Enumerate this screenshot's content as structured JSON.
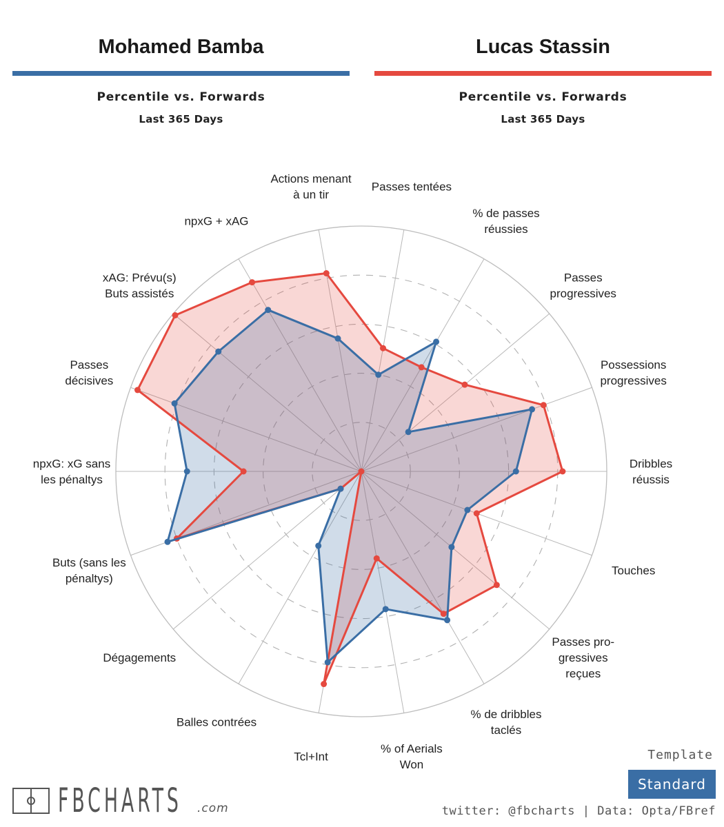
{
  "players": [
    {
      "name": "Mohamed Bamba",
      "color": "#3a6ea5",
      "subtitle": "Percentile vs. Forwards",
      "period": "Last 365 Days"
    },
    {
      "name": "Lucas Stassin",
      "color": "#e5493f",
      "subtitle": "Percentile vs. Forwards",
      "period": "Last 365 Days"
    }
  ],
  "chart_data": {
    "type": "radar",
    "title": "Mohamed Bamba vs Lucas Stassin — Percentile vs. Forwards (Last 365 Days)",
    "range": [
      0,
      100
    ],
    "gridlines": [
      20,
      40,
      60,
      80,
      100
    ],
    "categories": [
      {
        "label": [
          "Dribbles",
          "réussis"
        ]
      },
      {
        "label": [
          "Possessions",
          "progressives"
        ]
      },
      {
        "label": [
          "Passes",
          "progressives"
        ]
      },
      {
        "label": [
          "% de passes",
          "réussies"
        ]
      },
      {
        "label": [
          "Passes tentées"
        ]
      },
      {
        "label": [
          "Actions menant",
          "à un tir"
        ]
      },
      {
        "label": [
          "npxG + xAG"
        ]
      },
      {
        "label": [
          "xAG: Prévu(s)",
          "Buts assistés"
        ]
      },
      {
        "label": [
          "Passes",
          "décisives"
        ]
      },
      {
        "label": [
          "npxG: xG sans",
          "les pénaltys"
        ]
      },
      {
        "label": [
          "Buts (sans les",
          "pénaltys)"
        ]
      },
      {
        "label": [
          "Dégagements"
        ]
      },
      {
        "label": [
          "Balles contrées"
        ]
      },
      {
        "label": [
          "Tcl+Int"
        ]
      },
      {
        "label": [
          "% of Aerials",
          "Won"
        ]
      },
      {
        "label": [
          "% de dribbles",
          "taclés"
        ]
      },
      {
        "label": [
          "Passes pro-",
          "gressives",
          "reçues"
        ]
      },
      {
        "label": [
          "Touches"
        ]
      }
    ],
    "series": [
      {
        "name": "Lucas Stassin",
        "color": "#e5493f",
        "values": [
          82,
          79,
          55,
          49,
          51,
          82,
          89,
          99,
          97,
          48,
          80,
          11,
          0,
          88,
          36,
          67,
          72,
          50
        ]
      },
      {
        "name": "Mohamed Bamba",
        "color": "#3a6ea5",
        "values": [
          63,
          74,
          25,
          61,
          40,
          55,
          76,
          76,
          81,
          71,
          84,
          11,
          35,
          79,
          57,
          70,
          48,
          46
        ]
      }
    ]
  },
  "footer": {
    "logo_text": "FBCHARTS",
    "logo_suffix": ".com",
    "template_label": "Template",
    "template_value": "Standard",
    "credits": "twitter: @fbcharts | Data: Opta/FBref"
  }
}
